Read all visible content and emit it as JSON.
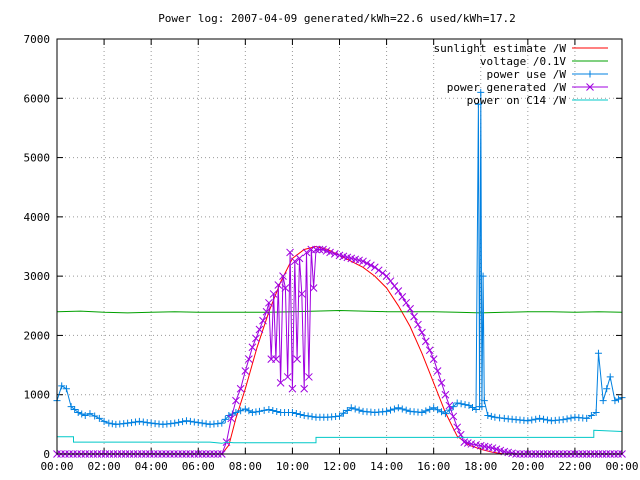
{
  "chart_data": {
    "type": "line",
    "title": "Power log: 2007-04-09 generated/kWh=22.6 used/kWh=17.2",
    "xlabel": "",
    "ylabel": "",
    "xlim": [
      0,
      24
    ],
    "ylim": [
      0,
      7000
    ],
    "grid": true,
    "legend_position": "top-right",
    "x_ticks": [
      "00:00",
      "02:00",
      "04:00",
      "06:00",
      "08:00",
      "10:00",
      "12:00",
      "14:00",
      "16:00",
      "18:00",
      "20:00",
      "22:00",
      "00:00"
    ],
    "y_ticks": [
      0,
      1000,
      2000,
      3000,
      4000,
      5000,
      6000,
      7000
    ],
    "series": [
      {
        "name": "sunlight estimate /W",
        "color": "#ff0000",
        "marker": "none",
        "x": [
          0,
          7.0,
          7.3,
          7.6,
          8.0,
          8.5,
          9.0,
          9.5,
          10.0,
          10.5,
          11.0,
          11.5,
          12.0,
          12.5,
          13.0,
          13.5,
          14.0,
          14.5,
          15.0,
          15.5,
          16.0,
          16.5,
          17.0,
          17.5,
          18.0,
          18.5,
          19.0,
          19.5,
          24
        ],
        "y": [
          0,
          0,
          150,
          600,
          1100,
          1800,
          2400,
          2900,
          3300,
          3450,
          3500,
          3450,
          3350,
          3250,
          3150,
          3000,
          2800,
          2500,
          2150,
          1700,
          1200,
          700,
          300,
          150,
          80,
          30,
          0,
          0,
          0
        ]
      },
      {
        "name": "voltage /0.1V",
        "color": "#00a000",
        "marker": "none",
        "x": [
          0,
          1,
          2,
          3,
          4,
          5,
          6,
          7,
          8,
          9,
          10,
          11,
          12,
          13,
          14,
          15,
          16,
          17,
          18,
          19,
          20,
          21,
          22,
          23,
          24
        ],
        "y": [
          2400,
          2410,
          2390,
          2380,
          2390,
          2400,
          2390,
          2390,
          2390,
          2390,
          2400,
          2410,
          2420,
          2410,
          2400,
          2400,
          2400,
          2390,
          2380,
          2390,
          2400,
          2400,
          2390,
          2400,
          2390
        ]
      },
      {
        "name": "power use /W",
        "color": "#0080e0",
        "marker": "plus",
        "x": [
          0,
          0.2,
          0.4,
          0.6,
          0.9,
          1.2,
          1.4,
          1.8,
          2.0,
          2.2,
          2.5,
          3.0,
          3.5,
          4.0,
          4.5,
          5.0,
          5.5,
          6.0,
          6.5,
          7.0,
          7.3,
          7.6,
          8.0,
          8.3,
          8.6,
          9.0,
          9.5,
          10.0,
          10.5,
          11.0,
          11.5,
          12.0,
          12.5,
          13.0,
          13.5,
          14.0,
          14.5,
          15.0,
          15.5,
          16.0,
          16.5,
          17.0,
          17.5,
          17.8,
          17.9,
          17.95,
          18.0,
          18.05,
          18.1,
          18.15,
          18.3,
          18.6,
          19.0,
          19.5,
          20.0,
          20.5,
          21.0,
          21.5,
          22.0,
          22.5,
          22.9,
          23.0,
          23.2,
          23.5,
          23.7,
          24.0
        ],
        "y": [
          900,
          1150,
          1100,
          800,
          700,
          650,
          680,
          600,
          550,
          520,
          500,
          520,
          550,
          520,
          500,
          520,
          560,
          530,
          500,
          520,
          650,
          700,
          760,
          700,
          720,
          750,
          700,
          700,
          650,
          620,
          620,
          640,
          780,
          720,
          700,
          720,
          780,
          720,
          700,
          780,
          680,
          860,
          820,
          750,
          5900,
          800,
          6100,
          800,
          3000,
          900,
          650,
          620,
          600,
          580,
          560,
          600,
          560,
          580,
          620,
          600,
          700,
          1700,
          900,
          1300,
          900,
          950
        ]
      },
      {
        "name": "power generated /W",
        "color": "#a000e0",
        "marker": "cross",
        "x": [
          0,
          6.0,
          7.0,
          7.2,
          7.4,
          7.6,
          7.8,
          8.0,
          8.3,
          8.6,
          8.9,
          9.0,
          9.1,
          9.2,
          9.3,
          9.4,
          9.5,
          9.6,
          9.7,
          9.8,
          9.9,
          10.0,
          10.1,
          10.2,
          10.3,
          10.4,
          10.5,
          10.6,
          10.7,
          10.8,
          10.9,
          11.0,
          11.3,
          11.6,
          12.0,
          12.5,
          13.0,
          13.5,
          14.0,
          14.5,
          15.0,
          15.5,
          16.0,
          16.5,
          17.0,
          17.3,
          17.6,
          18.0,
          18.5,
          19.0,
          19.5,
          20.0,
          22.0,
          24.0
        ],
        "y": [
          0,
          0,
          0,
          200,
          600,
          900,
          1100,
          1400,
          1800,
          2100,
          2400,
          2550,
          1600,
          2700,
          1600,
          2850,
          1200,
          3000,
          2800,
          1300,
          3400,
          1100,
          3250,
          1600,
          3300,
          2700,
          1100,
          3400,
          1300,
          3450,
          2800,
          3450,
          3450,
          3400,
          3350,
          3300,
          3250,
          3150,
          3000,
          2750,
          2450,
          2050,
          1600,
          1000,
          450,
          200,
          170,
          140,
          100,
          40,
          0,
          0,
          0,
          0
        ]
      },
      {
        "name": "power on C14 /W",
        "color": "#00c8c8",
        "marker": "none",
        "x": [
          0,
          0.7,
          0.7,
          6.5,
          7.0,
          7.2,
          7.5,
          8.5,
          11.0,
          11.0,
          22.5,
          22.5,
          22.8,
          22.8,
          24.0
        ],
        "y": [
          290,
          290,
          200,
          200,
          180,
          200,
          190,
          190,
          190,
          280,
          280,
          280,
          280,
          400,
          380
        ]
      }
    ]
  }
}
